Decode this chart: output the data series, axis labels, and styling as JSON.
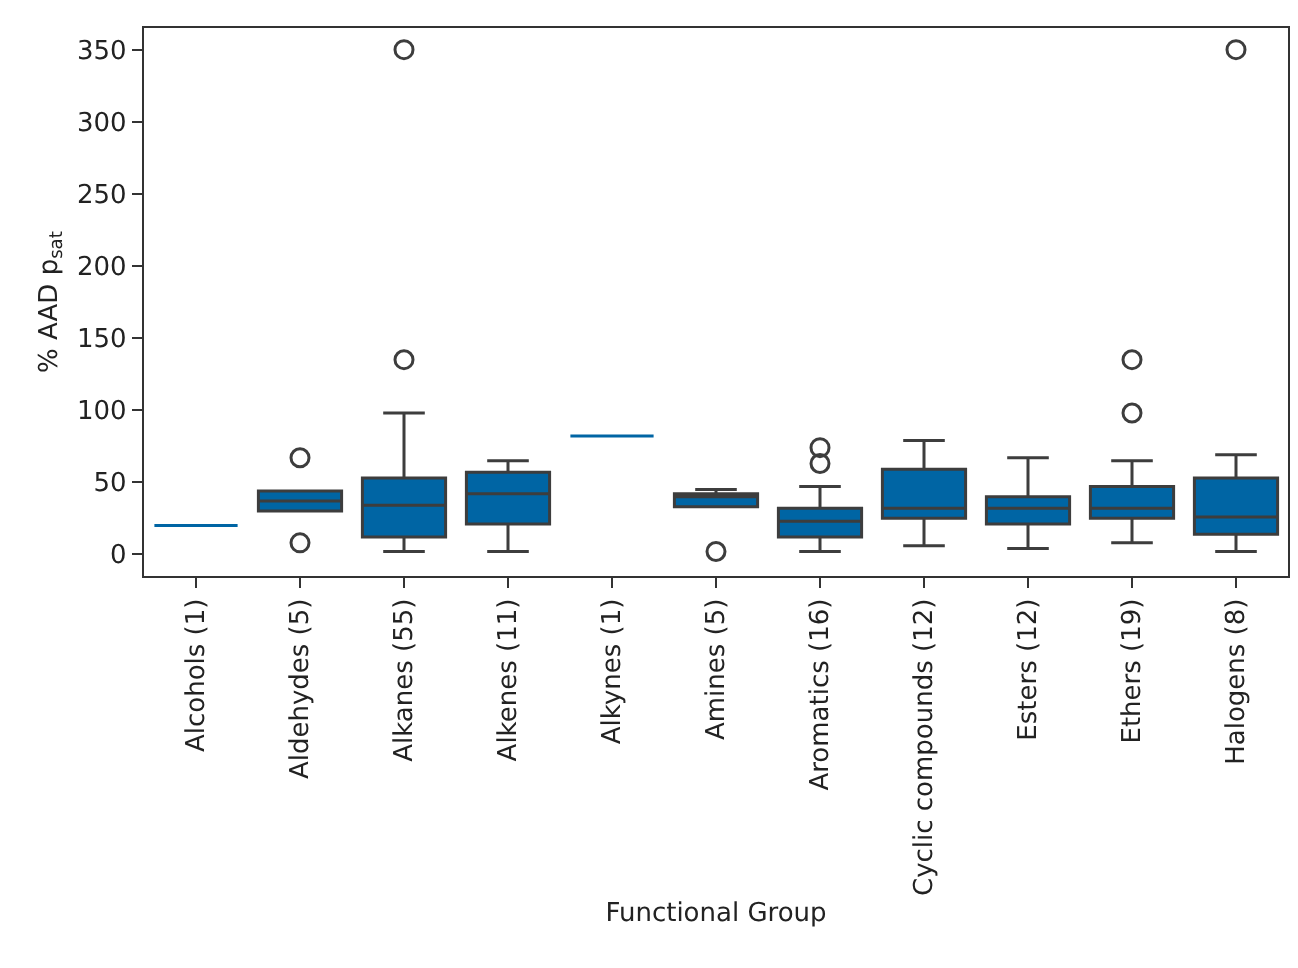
{
  "chart_data": {
    "type": "box",
    "xlabel": "Functional Group",
    "ylabel": "% AAD p$_{sat}$",
    "categories": [
      "Alcohols (1)",
      "Aldehydes (5)",
      "Alkanes (55)",
      "Alkenes (11)",
      "Alkynes (1)",
      "Amines (5)",
      "Aromatics (16)",
      "Cyclic compounds (12)",
      "Esters (12)",
      "Ethers (19)",
      "Halogens (8)"
    ],
    "color": "#0065a4",
    "ylim": [
      -15,
      365
    ],
    "yticks": [
      0,
      50,
      100,
      150,
      200,
      250,
      300,
      350
    ],
    "marker": "circle",
    "boxes": [
      {
        "low": 20,
        "q1": 20,
        "median": 20,
        "q3": 20,
        "high": 20
      },
      {
        "low": 30,
        "q1": 30,
        "median": 37,
        "q3": 44,
        "high": 44,
        "outliers": [
          67,
          8
        ]
      },
      {
        "low": 2,
        "q1": 12,
        "median": 34,
        "q3": 53,
        "high": 98,
        "outliers": [
          135,
          350
        ]
      },
      {
        "low": 2,
        "q1": 21,
        "median": 42,
        "q3": 57,
        "high": 65
      },
      {
        "low": 82,
        "q1": 82,
        "median": 82,
        "q3": 82,
        "high": 82
      },
      {
        "low": 33,
        "q1": 33,
        "median": 40,
        "q3": 42,
        "high": 45,
        "outliers": [
          2
        ]
      },
      {
        "low": 2,
        "q1": 12,
        "median": 23,
        "q3": 32,
        "high": 47,
        "outliers": [
          63,
          74
        ]
      },
      {
        "low": 6,
        "q1": 25,
        "median": 32,
        "q3": 59,
        "high": 79
      },
      {
        "low": 4,
        "q1": 21,
        "median": 32,
        "q3": 40,
        "high": 67
      },
      {
        "low": 8,
        "q1": 25,
        "median": 32,
        "q3": 47,
        "high": 65,
        "outliers": [
          98,
          135
        ]
      },
      {
        "low": 2,
        "q1": 14,
        "median": 26,
        "q3": 53,
        "high": 69,
        "outliers": [
          350
        ]
      }
    ]
  }
}
